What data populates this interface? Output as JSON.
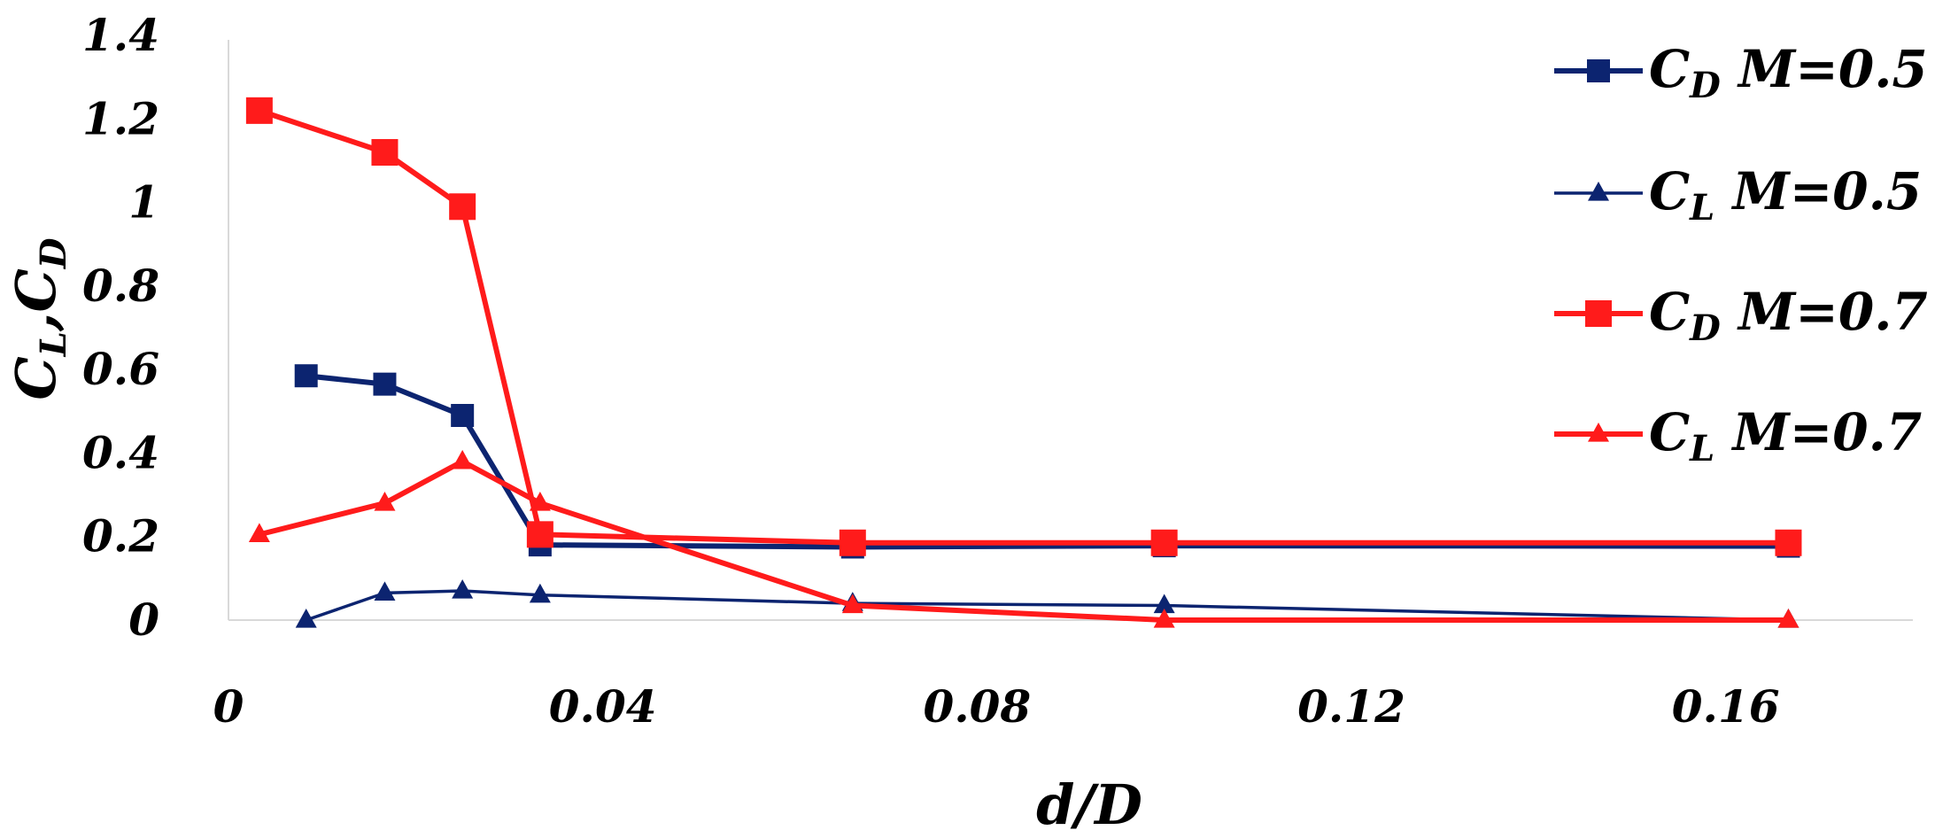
{
  "chart_data": {
    "type": "line",
    "xlabel": "d/D",
    "ylabel": {
      "c1": "C",
      "s1": "L",
      "sep": ",",
      "c2": "C",
      "s2": "D"
    },
    "xlim": [
      0,
      0.18
    ],
    "ylim": [
      0,
      1.4
    ],
    "xticks": [
      0,
      0.04,
      0.08,
      0.12,
      0.16
    ],
    "xtick_labels": [
      "0",
      "0.04",
      "0.08",
      "0.12",
      "0.16"
    ],
    "yticks": [
      0,
      0.2,
      0.4,
      0.6,
      0.8,
      1.0,
      1.2,
      1.4
    ],
    "ytick_labels": [
      "0",
      "0.2",
      "0.4",
      "0.6",
      "0.8",
      "1",
      "1.2",
      "1.4"
    ],
    "grid": false,
    "legend_position": "right",
    "series": [
      {
        "name": "C_D M=0.5",
        "legend": {
          "c": "C",
          "sub": "D",
          "rest": " M=0.5"
        },
        "color": "#0c2470",
        "marker": "square",
        "weight": "thick",
        "x": [
          0.0083,
          0.0167,
          0.025,
          0.0333,
          0.0667,
          0.1,
          0.1667
        ],
        "y": [
          0.585,
          0.565,
          0.49,
          0.18,
          0.175,
          0.178,
          0.177
        ]
      },
      {
        "name": "C_L M=0.5",
        "legend": {
          "c": "C",
          "sub": "L",
          "rest": " M=0.5"
        },
        "color": "#0c2470",
        "marker": "triangle",
        "weight": "thin",
        "x": [
          0.0083,
          0.0167,
          0.025,
          0.0333,
          0.0667,
          0.1,
          0.1667
        ],
        "y": [
          0.0,
          0.065,
          0.07,
          0.06,
          0.04,
          0.035,
          0.0
        ]
      },
      {
        "name": "C_D M=0.7",
        "legend": {
          "c": "C",
          "sub": "D",
          "rest": "  M=0.7"
        },
        "color": "#ff1b1b",
        "marker": "square",
        "weight": "thick",
        "x": [
          0.0033,
          0.0167,
          0.025,
          0.0333,
          0.0667,
          0.1,
          0.1667
        ],
        "y": [
          1.22,
          1.12,
          0.99,
          0.205,
          0.185,
          0.185,
          0.185
        ]
      },
      {
        "name": "C_L M=0.7",
        "legend": {
          "c": "C",
          "sub": "L",
          "rest": "  M=0.7"
        },
        "color": "#ff1b1b",
        "marker": "triangle",
        "weight": "thick",
        "x": [
          0.0033,
          0.0167,
          0.025,
          0.0333,
          0.0667,
          0.1,
          0.1667
        ],
        "y": [
          0.205,
          0.28,
          0.38,
          0.28,
          0.035,
          0.0,
          0.0
        ]
      }
    ]
  }
}
